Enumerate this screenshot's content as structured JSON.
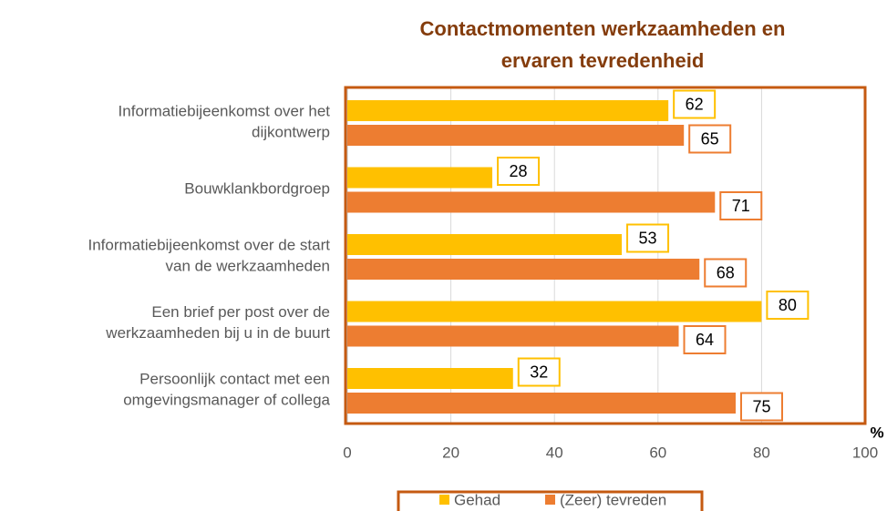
{
  "chart_data": {
    "type": "bar",
    "orientation": "horizontal",
    "title": [
      "Contactmomenten werkzaamheden en",
      "ervaren tevredenheid"
    ],
    "categories": [
      [
        "Informatiebijeenkomst over het",
        "dijkontwerp"
      ],
      [
        "Bouwklankbordgroep"
      ],
      [
        "Informatiebijeenkomst over de start",
        "van de werkzaamheden"
      ],
      [
        "Een brief per post over de",
        "werkzaamheden bij u in de buurt"
      ],
      [
        "Persoonlijk contact met een",
        "omgevingsmanager of collega"
      ]
    ],
    "series": [
      {
        "name": "Gehad",
        "color": "#ffc000",
        "values": [
          62,
          28,
          53,
          80,
          32
        ]
      },
      {
        "name": "(Zeer) tevreden",
        "color": "#ed7d31",
        "values": [
          65,
          71,
          68,
          64,
          75
        ]
      }
    ],
    "xlim": [
      0,
      100
    ],
    "xticks": [
      0,
      20,
      40,
      60,
      80,
      100
    ],
    "x_unit": "%",
    "grid": true,
    "legend": "bottom"
  }
}
